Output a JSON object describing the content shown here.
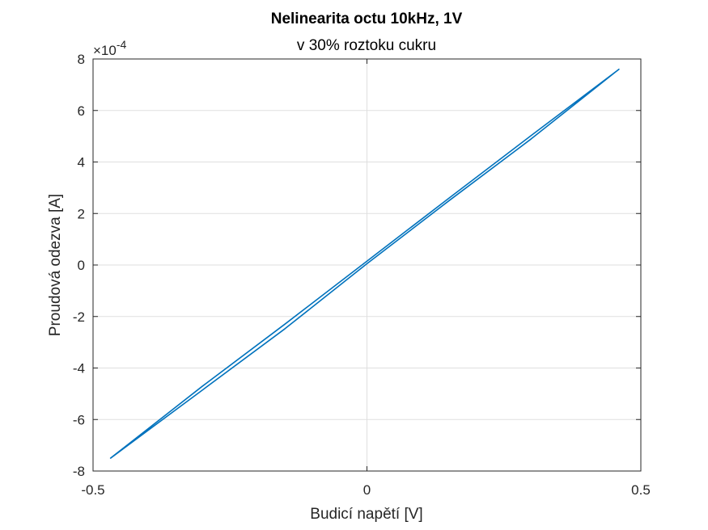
{
  "chart_data": {
    "type": "line",
    "title": "Nelinearita octu 10kHz, 1V",
    "subtitle": "v 30% roztoku cukru",
    "xlabel": "Budicí napětí [V]",
    "ylabel": "Proudová odezva [A]",
    "xlim": [
      -0.5,
      0.5
    ],
    "ylim": [
      -8,
      8
    ],
    "y_multiplier_label": "×10",
    "y_multiplier_exponent": "-4",
    "x_ticks": [
      -0.5,
      0,
      0.5
    ],
    "x_tick_labels": [
      "-0.5",
      "0",
      "0.5"
    ],
    "y_ticks": [
      -8,
      -6,
      -4,
      -2,
      0,
      2,
      4,
      6,
      8
    ],
    "y_tick_labels": [
      "-8",
      "-6",
      "-4",
      "-2",
      "0",
      "2",
      "4",
      "6",
      "8"
    ],
    "grid": true,
    "series": [
      {
        "color": "#0072BD",
        "x": [
          -0.468,
          -0.3,
          -0.15,
          0.0,
          0.15,
          0.3,
          0.46,
          0.3,
          0.15,
          0.0,
          -0.15,
          -0.3,
          -0.468
        ],
        "y": [
          -7.5,
          -4.85,
          -2.48,
          0.05,
          2.5,
          4.9,
          7.6,
          5.03,
          2.6,
          0.15,
          -2.3,
          -4.7,
          -7.5
        ]
      }
    ]
  }
}
